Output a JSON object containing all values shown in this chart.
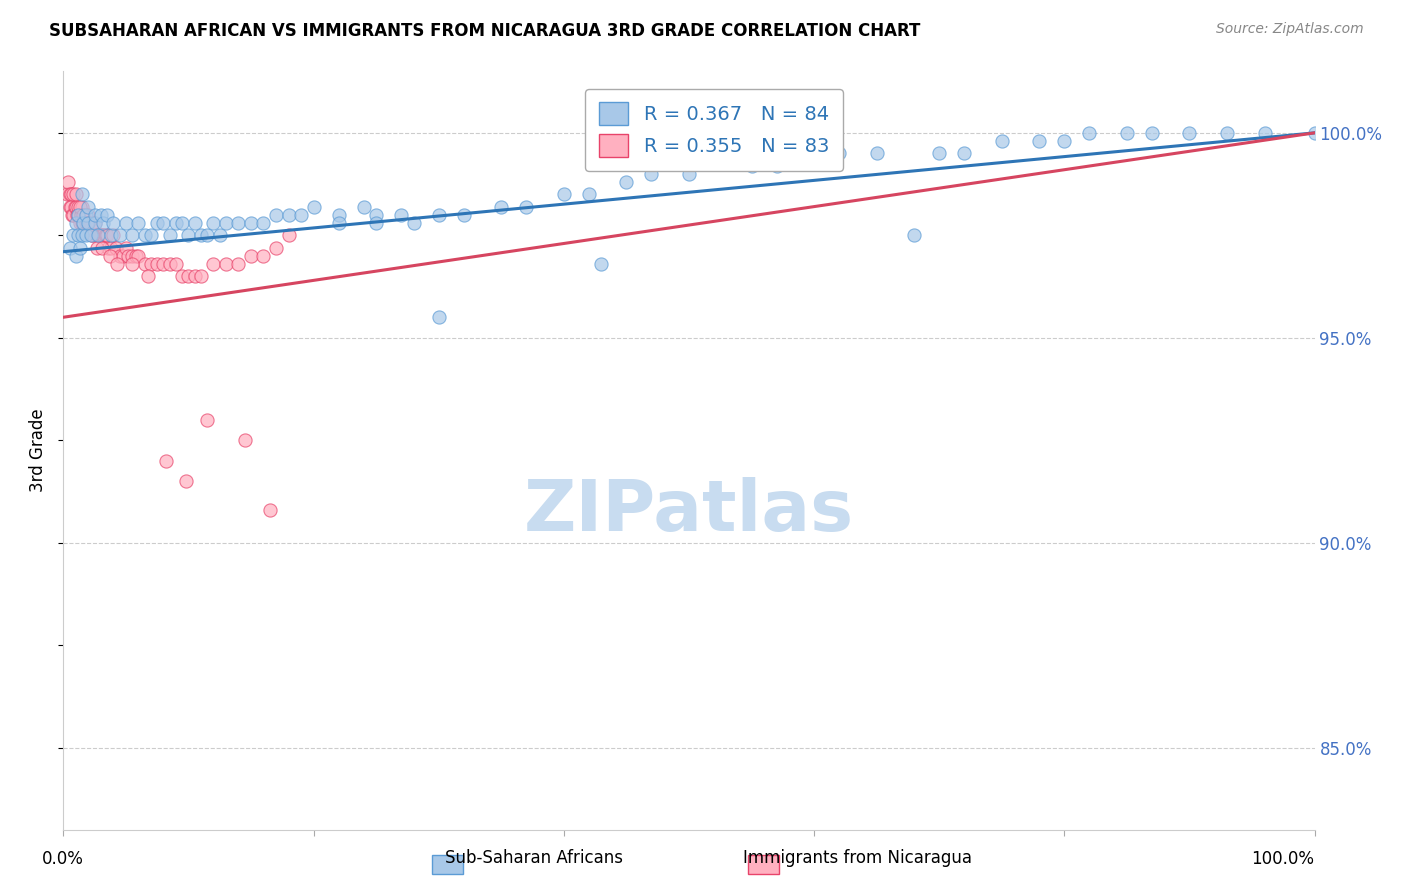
{
  "title": "SUBSAHARAN AFRICAN VS IMMIGRANTS FROM NICARAGUA 3RD GRADE CORRELATION CHART",
  "source": "Source: ZipAtlas.com",
  "ylabel": "3rd Grade",
  "legend1_label": "Sub-Saharan Africans",
  "legend2_label": "Immigrants from Nicaragua",
  "r1": 0.367,
  "n1": 84,
  "r2": 0.355,
  "n2": 83,
  "blue_color": "#A8C8E8",
  "blue_edge_color": "#5B9BD5",
  "pink_color": "#FFB0C0",
  "pink_edge_color": "#E8436A",
  "blue_line_color": "#2E75B6",
  "pink_line_color": "#D64560",
  "ytick_color": "#4472C4",
  "watermark_color": "#C8DCF0",
  "blue_scatter_x": [
    0.5,
    0.8,
    1.0,
    1.0,
    1.2,
    1.2,
    1.3,
    1.5,
    1.5,
    1.6,
    1.8,
    1.8,
    2.0,
    2.0,
    2.2,
    2.5,
    2.5,
    2.8,
    3.0,
    3.2,
    3.5,
    3.8,
    4.0,
    4.5,
    5.0,
    5.5,
    6.0,
    6.5,
    7.0,
    7.5,
    8.0,
    8.5,
    9.0,
    9.5,
    10.0,
    10.5,
    11.0,
    11.5,
    12.0,
    12.5,
    13.0,
    14.0,
    15.0,
    16.0,
    17.0,
    18.0,
    19.0,
    20.0,
    22.0,
    24.0,
    25.0,
    27.0,
    28.0,
    30.0,
    32.0,
    35.0,
    37.0,
    40.0,
    42.0,
    45.0,
    47.0,
    50.0,
    55.0,
    57.0,
    60.0,
    62.0,
    65.0,
    68.0,
    70.0,
    72.0,
    75.0,
    78.0,
    80.0,
    82.0,
    85.0,
    87.0,
    90.0,
    93.0,
    96.0,
    100.0,
    22.0,
    25.0,
    30.0,
    43.0
  ],
  "blue_scatter_y": [
    97.2,
    97.5,
    97.0,
    97.8,
    97.5,
    98.0,
    97.2,
    98.5,
    97.5,
    97.8,
    98.0,
    97.5,
    97.8,
    98.2,
    97.5,
    97.8,
    98.0,
    97.5,
    98.0,
    97.8,
    98.0,
    97.5,
    97.8,
    97.5,
    97.8,
    97.5,
    97.8,
    97.5,
    97.5,
    97.8,
    97.8,
    97.5,
    97.8,
    97.8,
    97.5,
    97.8,
    97.5,
    97.5,
    97.8,
    97.5,
    97.8,
    97.8,
    97.8,
    97.8,
    98.0,
    98.0,
    98.0,
    98.2,
    98.0,
    98.2,
    98.0,
    98.0,
    97.8,
    98.0,
    98.0,
    98.2,
    98.2,
    98.5,
    98.5,
    98.8,
    99.0,
    99.0,
    99.2,
    99.2,
    99.5,
    99.5,
    99.5,
    97.5,
    99.5,
    99.5,
    99.8,
    99.8,
    99.8,
    100.0,
    100.0,
    100.0,
    100.0,
    100.0,
    100.0,
    100.0,
    97.8,
    97.8,
    95.5,
    96.8
  ],
  "pink_scatter_x": [
    0.3,
    0.4,
    0.5,
    0.5,
    0.6,
    0.6,
    0.7,
    0.8,
    0.8,
    0.9,
    1.0,
    1.0,
    1.1,
    1.2,
    1.2,
    1.3,
    1.4,
    1.5,
    1.5,
    1.6,
    1.7,
    1.8,
    1.9,
    2.0,
    2.0,
    2.1,
    2.2,
    2.3,
    2.4,
    2.5,
    2.6,
    2.7,
    2.8,
    2.9,
    3.0,
    3.1,
    3.2,
    3.3,
    3.4,
    3.5,
    3.6,
    3.8,
    4.0,
    4.2,
    4.5,
    4.8,
    5.0,
    5.2,
    5.5,
    5.8,
    6.0,
    6.5,
    7.0,
    7.5,
    8.0,
    8.5,
    9.0,
    9.5,
    10.0,
    10.5,
    11.0,
    12.0,
    13.0,
    14.0,
    15.0,
    16.0,
    17.0,
    18.0,
    1.3,
    1.6,
    1.9,
    2.3,
    2.7,
    3.1,
    3.7,
    4.3,
    5.5,
    6.8,
    8.2,
    9.8,
    11.5,
    14.5,
    16.5
  ],
  "pink_scatter_y": [
    98.5,
    98.8,
    98.5,
    98.2,
    98.5,
    98.2,
    98.0,
    98.5,
    98.0,
    98.2,
    98.2,
    98.5,
    98.0,
    98.2,
    98.0,
    97.8,
    98.0,
    98.2,
    97.8,
    97.8,
    98.0,
    97.8,
    97.8,
    97.8,
    98.0,
    97.8,
    97.8,
    97.5,
    97.8,
    97.8,
    97.5,
    97.5,
    97.5,
    97.5,
    97.5,
    97.5,
    97.5,
    97.5,
    97.5,
    97.5,
    97.2,
    97.2,
    97.5,
    97.2,
    97.0,
    97.0,
    97.2,
    97.0,
    97.0,
    97.0,
    97.0,
    96.8,
    96.8,
    96.8,
    96.8,
    96.8,
    96.8,
    96.5,
    96.5,
    96.5,
    96.5,
    96.8,
    96.8,
    96.8,
    97.0,
    97.0,
    97.2,
    97.5,
    98.2,
    98.0,
    97.8,
    97.5,
    97.2,
    97.2,
    97.0,
    96.8,
    96.8,
    96.5,
    92.0,
    91.5,
    93.0,
    92.5,
    90.8
  ],
  "blue_trend_x": [
    0,
    100
  ],
  "blue_trend_y": [
    97.1,
    100.0
  ],
  "pink_trend_x": [
    0,
    100
  ],
  "pink_trend_y": [
    95.5,
    100.0
  ],
  "xlim": [
    0,
    100
  ],
  "ylim": [
    83.0,
    101.5
  ],
  "yticks": [
    85.0,
    90.0,
    95.0,
    100.0
  ],
  "ytick_labels": [
    "85.0%",
    "90.0%",
    "95.0%",
    "100.0%"
  ],
  "xtick_positions": [
    0,
    20,
    40,
    60,
    80,
    100
  ],
  "background_color": "#FFFFFF",
  "grid_color": "#CCCCCC"
}
